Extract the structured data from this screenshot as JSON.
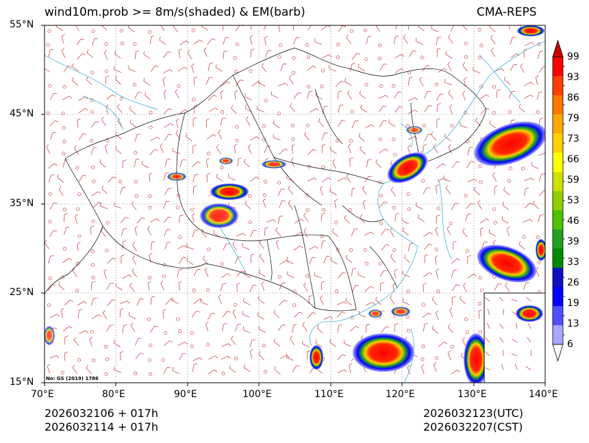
{
  "title": {
    "left": "wind10m.prob >= 8m/s(shaded) & EM(barb)",
    "right": "CMA-REPS"
  },
  "axes": {
    "lat_labels": [
      "55°N",
      "45°N",
      "35°N",
      "25°N",
      "15°N"
    ],
    "lon_labels": [
      "70°E",
      "80°E",
      "90°E",
      "100°E",
      "110°E",
      "120°E",
      "130°E",
      "140°E"
    ],
    "lat_range": [
      15,
      55
    ],
    "lon_range": [
      70,
      140
    ]
  },
  "colorbar": {
    "levels": [
      "6",
      "13",
      "19",
      "26",
      "33",
      "39",
      "46",
      "53",
      "59",
      "66",
      "73",
      "79",
      "86",
      "93",
      "99"
    ],
    "colors": [
      "#a8a8ff",
      "#5050ff",
      "#0000ff",
      "#1010c0",
      "#008a00",
      "#20a020",
      "#50c000",
      "#90d000",
      "#d0e000",
      "#ffff00",
      "#ffd000",
      "#ffa800",
      "#ff7800",
      "#ff4000",
      "#ff0000"
    ]
  },
  "footer": {
    "left_line1": "2026032106  +  017h",
    "left_line2": "2026032114  +  017h",
    "right_line1": "2026032123(UTC)",
    "right_line2": "2026032207(CST)"
  },
  "map_note": "No: GS (2019) 1786"
}
